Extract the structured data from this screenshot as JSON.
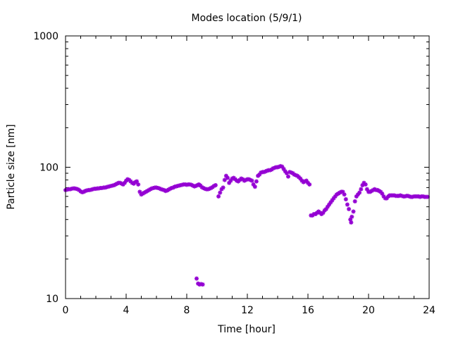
{
  "chart_data": {
    "type": "scatter",
    "title": "Modes location (5/9/1)",
    "xlabel": "Time [hour]",
    "ylabel": "Particle size [nm]",
    "xlim": [
      0,
      24
    ],
    "ylim": [
      10,
      1000
    ],
    "y_scale": "log",
    "x_ticks": [
      "0",
      "4",
      "8",
      "12",
      "16",
      "20",
      "24"
    ],
    "y_ticks": [
      "10",
      "100",
      "1000"
    ],
    "grid": false,
    "legend": "none",
    "marker_color": "#9400d3",
    "series": [
      {
        "points": [
          [
            0.0,
            67
          ],
          [
            0.1,
            67.5
          ],
          [
            0.2,
            68
          ],
          [
            0.3,
            68
          ],
          [
            0.4,
            68.5
          ],
          [
            0.5,
            69
          ],
          [
            0.6,
            69
          ],
          [
            0.7,
            68.5
          ],
          [
            0.8,
            68
          ],
          [
            0.9,
            67
          ],
          [
            1.0,
            65.5
          ],
          [
            1.1,
            64.5
          ],
          [
            1.2,
            65
          ],
          [
            1.3,
            66
          ],
          [
            1.4,
            66.5
          ],
          [
            1.5,
            67
          ],
          [
            1.6,
            67
          ],
          [
            1.7,
            67.5
          ],
          [
            1.8,
            68
          ],
          [
            1.9,
            68.5
          ],
          [
            2.0,
            68.5
          ],
          [
            2.1,
            69
          ],
          [
            2.2,
            69
          ],
          [
            2.3,
            69.5
          ],
          [
            2.4,
            69.5
          ],
          [
            2.5,
            70
          ],
          [
            2.6,
            70
          ],
          [
            2.7,
            70.5
          ],
          [
            2.8,
            71
          ],
          [
            2.9,
            71.5
          ],
          [
            3.0,
            72
          ],
          [
            3.1,
            72.5
          ],
          [
            3.2,
            73
          ],
          [
            3.3,
            74
          ],
          [
            3.4,
            75
          ],
          [
            3.5,
            76
          ],
          [
            3.6,
            76
          ],
          [
            3.7,
            75
          ],
          [
            3.8,
            74
          ],
          [
            3.9,
            76
          ],
          [
            4.0,
            79
          ],
          [
            4.1,
            81
          ],
          [
            4.2,
            80
          ],
          [
            4.3,
            78
          ],
          [
            4.4,
            76
          ],
          [
            4.5,
            75
          ],
          [
            4.6,
            77
          ],
          [
            4.7,
            78
          ],
          [
            4.8,
            74
          ],
          [
            4.9,
            65
          ],
          [
            5.0,
            62
          ],
          [
            5.1,
            63
          ],
          [
            5.2,
            64
          ],
          [
            5.3,
            65
          ],
          [
            5.4,
            66
          ],
          [
            5.5,
            67
          ],
          [
            5.6,
            68
          ],
          [
            5.7,
            69
          ],
          [
            5.8,
            69.5
          ],
          [
            5.9,
            70
          ],
          [
            6.0,
            70
          ],
          [
            6.1,
            69.5
          ],
          [
            6.2,
            69
          ],
          [
            6.3,
            68
          ],
          [
            6.4,
            67.5
          ],
          [
            6.5,
            67
          ],
          [
            6.6,
            66
          ],
          [
            6.7,
            66.5
          ],
          [
            6.8,
            67.5
          ],
          [
            6.9,
            68.5
          ],
          [
            7.0,
            69.5
          ],
          [
            7.1,
            70
          ],
          [
            7.2,
            71
          ],
          [
            7.3,
            71.5
          ],
          [
            7.4,
            72
          ],
          [
            7.5,
            72.5
          ],
          [
            7.6,
            73
          ],
          [
            7.7,
            73.5
          ],
          [
            7.8,
            74
          ],
          [
            7.9,
            74
          ],
          [
            8.0,
            73.5
          ],
          [
            8.1,
            74
          ],
          [
            8.2,
            74
          ],
          [
            8.3,
            73.5
          ],
          [
            8.4,
            72.5
          ],
          [
            8.5,
            71.5
          ],
          [
            8.6,
            72
          ],
          [
            8.7,
            73
          ],
          [
            8.8,
            74
          ],
          [
            8.9,
            72.5
          ],
          [
            9.0,
            70.5
          ],
          [
            9.1,
            69.5
          ],
          [
            9.2,
            68.5
          ],
          [
            9.3,
            68
          ],
          [
            9.4,
            68
          ],
          [
            9.5,
            68.5
          ],
          [
            9.6,
            69.5
          ],
          [
            9.7,
            70.5
          ],
          [
            9.8,
            72
          ],
          [
            9.9,
            73
          ],
          [
            10.1,
            60
          ],
          [
            10.2,
            64
          ],
          [
            10.3,
            68
          ],
          [
            10.4,
            70
          ],
          [
            10.5,
            80
          ],
          [
            10.6,
            86
          ],
          [
            10.7,
            83
          ],
          [
            10.8,
            76
          ],
          [
            10.9,
            79
          ],
          [
            11.0,
            82
          ],
          [
            11.1,
            83
          ],
          [
            11.2,
            81
          ],
          [
            11.3,
            79
          ],
          [
            11.4,
            78
          ],
          [
            11.5,
            80
          ],
          [
            11.6,
            82
          ],
          [
            11.7,
            81
          ],
          [
            11.8,
            79
          ],
          [
            11.9,
            80
          ],
          [
            12.0,
            81
          ],
          [
            12.1,
            81
          ],
          [
            12.2,
            80
          ],
          [
            12.3,
            79
          ],
          [
            12.4,
            74
          ],
          [
            12.5,
            71
          ],
          [
            12.6,
            78
          ],
          [
            12.7,
            86
          ],
          [
            12.8,
            88
          ],
          [
            12.9,
            91
          ],
          [
            13.0,
            92
          ],
          [
            13.1,
            92
          ],
          [
            13.2,
            93
          ],
          [
            13.3,
            94
          ],
          [
            13.4,
            95
          ],
          [
            13.5,
            95
          ],
          [
            13.6,
            96
          ],
          [
            13.7,
            98
          ],
          [
            13.8,
            99
          ],
          [
            13.9,
            100
          ],
          [
            14.0,
            100
          ],
          [
            14.1,
            101
          ],
          [
            14.2,
            102
          ],
          [
            14.3,
            101
          ],
          [
            14.4,
            97
          ],
          [
            14.5,
            93
          ],
          [
            14.6,
            90
          ],
          [
            14.7,
            85
          ],
          [
            14.8,
            92
          ],
          [
            14.9,
            91
          ],
          [
            15.0,
            90
          ],
          [
            15.1,
            88
          ],
          [
            15.2,
            87
          ],
          [
            15.3,
            86
          ],
          [
            15.4,
            84
          ],
          [
            15.5,
            82
          ],
          [
            15.6,
            79
          ],
          [
            15.7,
            77
          ],
          [
            15.8,
            78
          ],
          [
            15.9,
            79
          ],
          [
            16.0,
            76
          ],
          [
            16.1,
            74
          ],
          [
            16.2,
            43
          ],
          [
            16.3,
            43
          ],
          [
            16.4,
            44
          ],
          [
            16.5,
            44
          ],
          [
            16.6,
            45
          ],
          [
            16.7,
            46
          ],
          [
            16.8,
            45
          ],
          [
            16.9,
            44
          ],
          [
            17.0,
            45
          ],
          [
            17.1,
            47
          ],
          [
            17.2,
            48
          ],
          [
            17.3,
            50
          ],
          [
            17.4,
            52
          ],
          [
            17.5,
            54
          ],
          [
            17.6,
            56
          ],
          [
            17.7,
            58
          ],
          [
            17.8,
            60
          ],
          [
            17.9,
            62
          ],
          [
            18.0,
            63
          ],
          [
            18.1,
            64
          ],
          [
            18.2,
            65
          ],
          [
            18.3,
            65
          ],
          [
            18.4,
            62
          ],
          [
            18.5,
            57
          ],
          [
            18.6,
            52
          ],
          [
            18.7,
            48
          ],
          [
            18.8,
            40
          ],
          [
            18.85,
            38
          ],
          [
            18.9,
            42
          ],
          [
            19.0,
            46
          ],
          [
            19.1,
            55
          ],
          [
            19.2,
            60
          ],
          [
            19.3,
            62
          ],
          [
            19.4,
            64
          ],
          [
            19.5,
            68
          ],
          [
            19.6,
            73
          ],
          [
            19.7,
            76
          ],
          [
            19.8,
            74
          ],
          [
            19.9,
            68
          ],
          [
            20.0,
            65
          ],
          [
            20.1,
            65
          ],
          [
            20.2,
            66
          ],
          [
            20.3,
            67
          ],
          [
            20.4,
            68
          ],
          [
            20.5,
            67
          ],
          [
            20.6,
            67
          ],
          [
            20.7,
            66
          ],
          [
            20.8,
            65
          ],
          [
            20.9,
            63
          ],
          [
            21.0,
            60
          ],
          [
            21.1,
            58
          ],
          [
            21.2,
            58
          ],
          [
            21.3,
            60
          ],
          [
            21.4,
            61
          ],
          [
            21.5,
            61
          ],
          [
            21.6,
            61
          ],
          [
            21.7,
            61
          ],
          [
            21.8,
            60.5
          ],
          [
            21.9,
            60.5
          ],
          [
            22.0,
            60.5
          ],
          [
            22.1,
            61
          ],
          [
            22.2,
            60.5
          ],
          [
            22.3,
            60
          ],
          [
            22.4,
            60
          ],
          [
            22.5,
            60.5
          ],
          [
            22.6,
            60.5
          ],
          [
            22.7,
            60
          ],
          [
            22.8,
            59.5
          ],
          [
            22.9,
            59.5
          ],
          [
            23.0,
            60
          ],
          [
            23.1,
            60
          ],
          [
            23.2,
            60
          ],
          [
            23.3,
            60
          ],
          [
            23.4,
            59.5
          ],
          [
            23.5,
            60
          ],
          [
            23.6,
            60
          ],
          [
            23.7,
            59.5
          ],
          [
            23.8,
            59.5
          ],
          [
            23.9,
            59.5
          ],
          [
            8.65,
            14.2
          ],
          [
            8.75,
            13.0
          ],
          [
            8.85,
            12.8
          ],
          [
            8.95,
            12.9
          ],
          [
            9.05,
            12.8
          ]
        ]
      }
    ]
  }
}
